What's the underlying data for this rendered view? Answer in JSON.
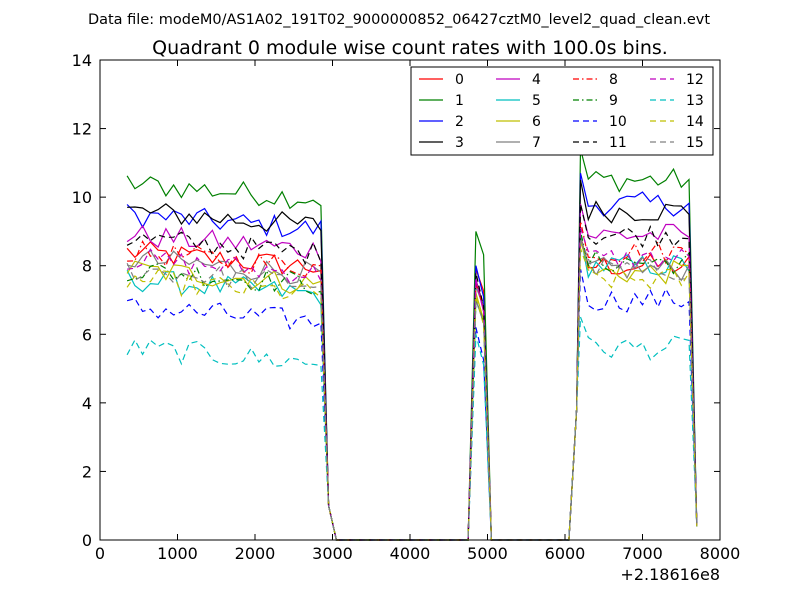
{
  "header": {
    "data_file": "Data file: modeM0/AS1A02_191T02_9000000852_06427cztM0_level2_quad_clean.evt"
  },
  "chart_data": {
    "type": "line",
    "title": "Quadrant 0 module wise count rates with 100.0s bins.",
    "xlabel": "",
    "ylabel": "",
    "x_offset_label": "+2.18616e8",
    "xlim": [
      0,
      8000
    ],
    "ylim": [
      0,
      14
    ],
    "x_ticks": [
      "0",
      "1000",
      "2000",
      "3000",
      "4000",
      "5000",
      "6000",
      "7000",
      "8000"
    ],
    "y_ticks": [
      "0",
      "2",
      "4",
      "6",
      "8",
      "10",
      "12",
      "14"
    ],
    "grid": false,
    "legend_position": "top-right",
    "legend_columns": 4,
    "segments": [
      {
        "start": 350,
        "end": 2850
      },
      {
        "start": 4800,
        "end": 5000
      },
      {
        "start": 6200,
        "end": 7650
      }
    ],
    "series": [
      {
        "name": "0",
        "color": "#ff0000",
        "dash": "solid",
        "level": 8.4,
        "peak2": 7.9,
        "level3": 8.0
      },
      {
        "name": "1",
        "color": "#008000",
        "dash": "solid",
        "level": 10.4,
        "peak2": 9.0,
        "level3": 10.5
      },
      {
        "name": "2",
        "color": "#0000ff",
        "dash": "solid",
        "level": 9.5,
        "peak2": 8.0,
        "level3": 9.8
      },
      {
        "name": "3",
        "color": "#000000",
        "dash": "solid",
        "level": 9.6,
        "peak2": 7.6,
        "level3": 9.6
      },
      {
        "name": "4",
        "color": "#bf00bf",
        "dash": "solid",
        "level": 8.9,
        "peak2": 7.6,
        "level3": 8.9
      },
      {
        "name": "5",
        "color": "#00bfbf",
        "dash": "solid",
        "level": 7.6,
        "peak2": 7.0,
        "level3": 8.0
      },
      {
        "name": "6",
        "color": "#bfbf00",
        "dash": "solid",
        "level": 7.9,
        "peak2": 7.2,
        "level3": 7.8
      },
      {
        "name": "7",
        "color": "#808080",
        "dash": "solid",
        "level": 8.2,
        "peak2": 7.4,
        "level3": 7.9
      },
      {
        "name": "8",
        "color": "#ff0000",
        "dash": "dashdot",
        "level": 8.4,
        "peak2": 7.5,
        "level3": 8.4
      },
      {
        "name": "9",
        "color": "#008000",
        "dash": "dashdot",
        "level": 7.9,
        "peak2": 7.0,
        "level3": 8.1
      },
      {
        "name": "10",
        "color": "#0000ff",
        "dash": "dashed",
        "level": 6.8,
        "peak2": 6.2,
        "level3": 7.0
      },
      {
        "name": "11",
        "color": "#000000",
        "dash": "dashed",
        "level": 8.8,
        "peak2": 7.8,
        "level3": 8.9
      },
      {
        "name": "12",
        "color": "#bf00bf",
        "dash": "dashed",
        "level": 8.2,
        "peak2": 7.6,
        "level3": 8.2
      },
      {
        "name": "13",
        "color": "#00bfbf",
        "dash": "dashed",
        "level": 5.6,
        "peak2": 6.0,
        "level3": 5.6
      },
      {
        "name": "14",
        "color": "#bfbf00",
        "dash": "dashed",
        "level": 7.6,
        "peak2": 7.1,
        "level3": 7.6
      },
      {
        "name": "15",
        "color": "#808080",
        "dash": "dashed",
        "level": 7.9,
        "peak2": 7.0,
        "level3": 7.9
      }
    ]
  }
}
